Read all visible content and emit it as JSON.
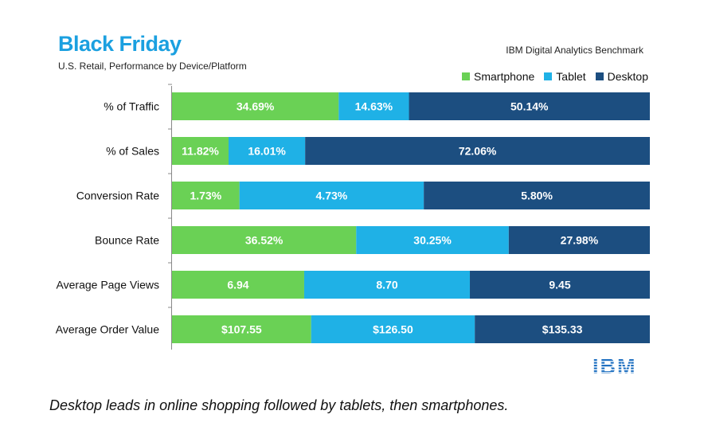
{
  "header": {
    "title": "Black Friday",
    "subtitle": "U.S. Retail, Performance by Device/Platform",
    "source": "IBM Digital Analytics Benchmark"
  },
  "caption": "Desktop leads in online shopping followed by tablets, then smartphones.",
  "logo": {
    "text": "IBM"
  },
  "colors": {
    "Smartphone": "#6ad155",
    "Tablet": "#1fb1e6",
    "Desktop": "#1c4e80"
  },
  "chart_data": {
    "type": "bar",
    "orientation": "horizontal",
    "stacked": true,
    "normalized": true,
    "categories": [
      "% of Traffic",
      "% of Sales",
      "Conversion Rate",
      "Bounce Rate",
      "Average Page Views",
      "Average Order Value"
    ],
    "series": [
      {
        "name": "Smartphone",
        "values": [
          34.69,
          11.82,
          1.73,
          36.52,
          6.94,
          107.55
        ],
        "labels": [
          "34.69%",
          "11.82%",
          "1.73%",
          "36.52%",
          "6.94",
          "$107.55"
        ]
      },
      {
        "name": "Tablet",
        "values": [
          14.63,
          16.01,
          4.73,
          30.25,
          8.7,
          126.5
        ],
        "labels": [
          "14.63%",
          "16.01%",
          "4.73%",
          "30.25%",
          "8.70",
          "$126.50"
        ]
      },
      {
        "name": "Desktop",
        "values": [
          50.14,
          72.06,
          5.8,
          27.98,
          9.45,
          135.33
        ],
        "labels": [
          "50.14%",
          "72.06%",
          "5.80%",
          "27.98%",
          "9.45",
          "$135.33"
        ]
      }
    ],
    "legend_position": "top-right",
    "grid": false
  }
}
